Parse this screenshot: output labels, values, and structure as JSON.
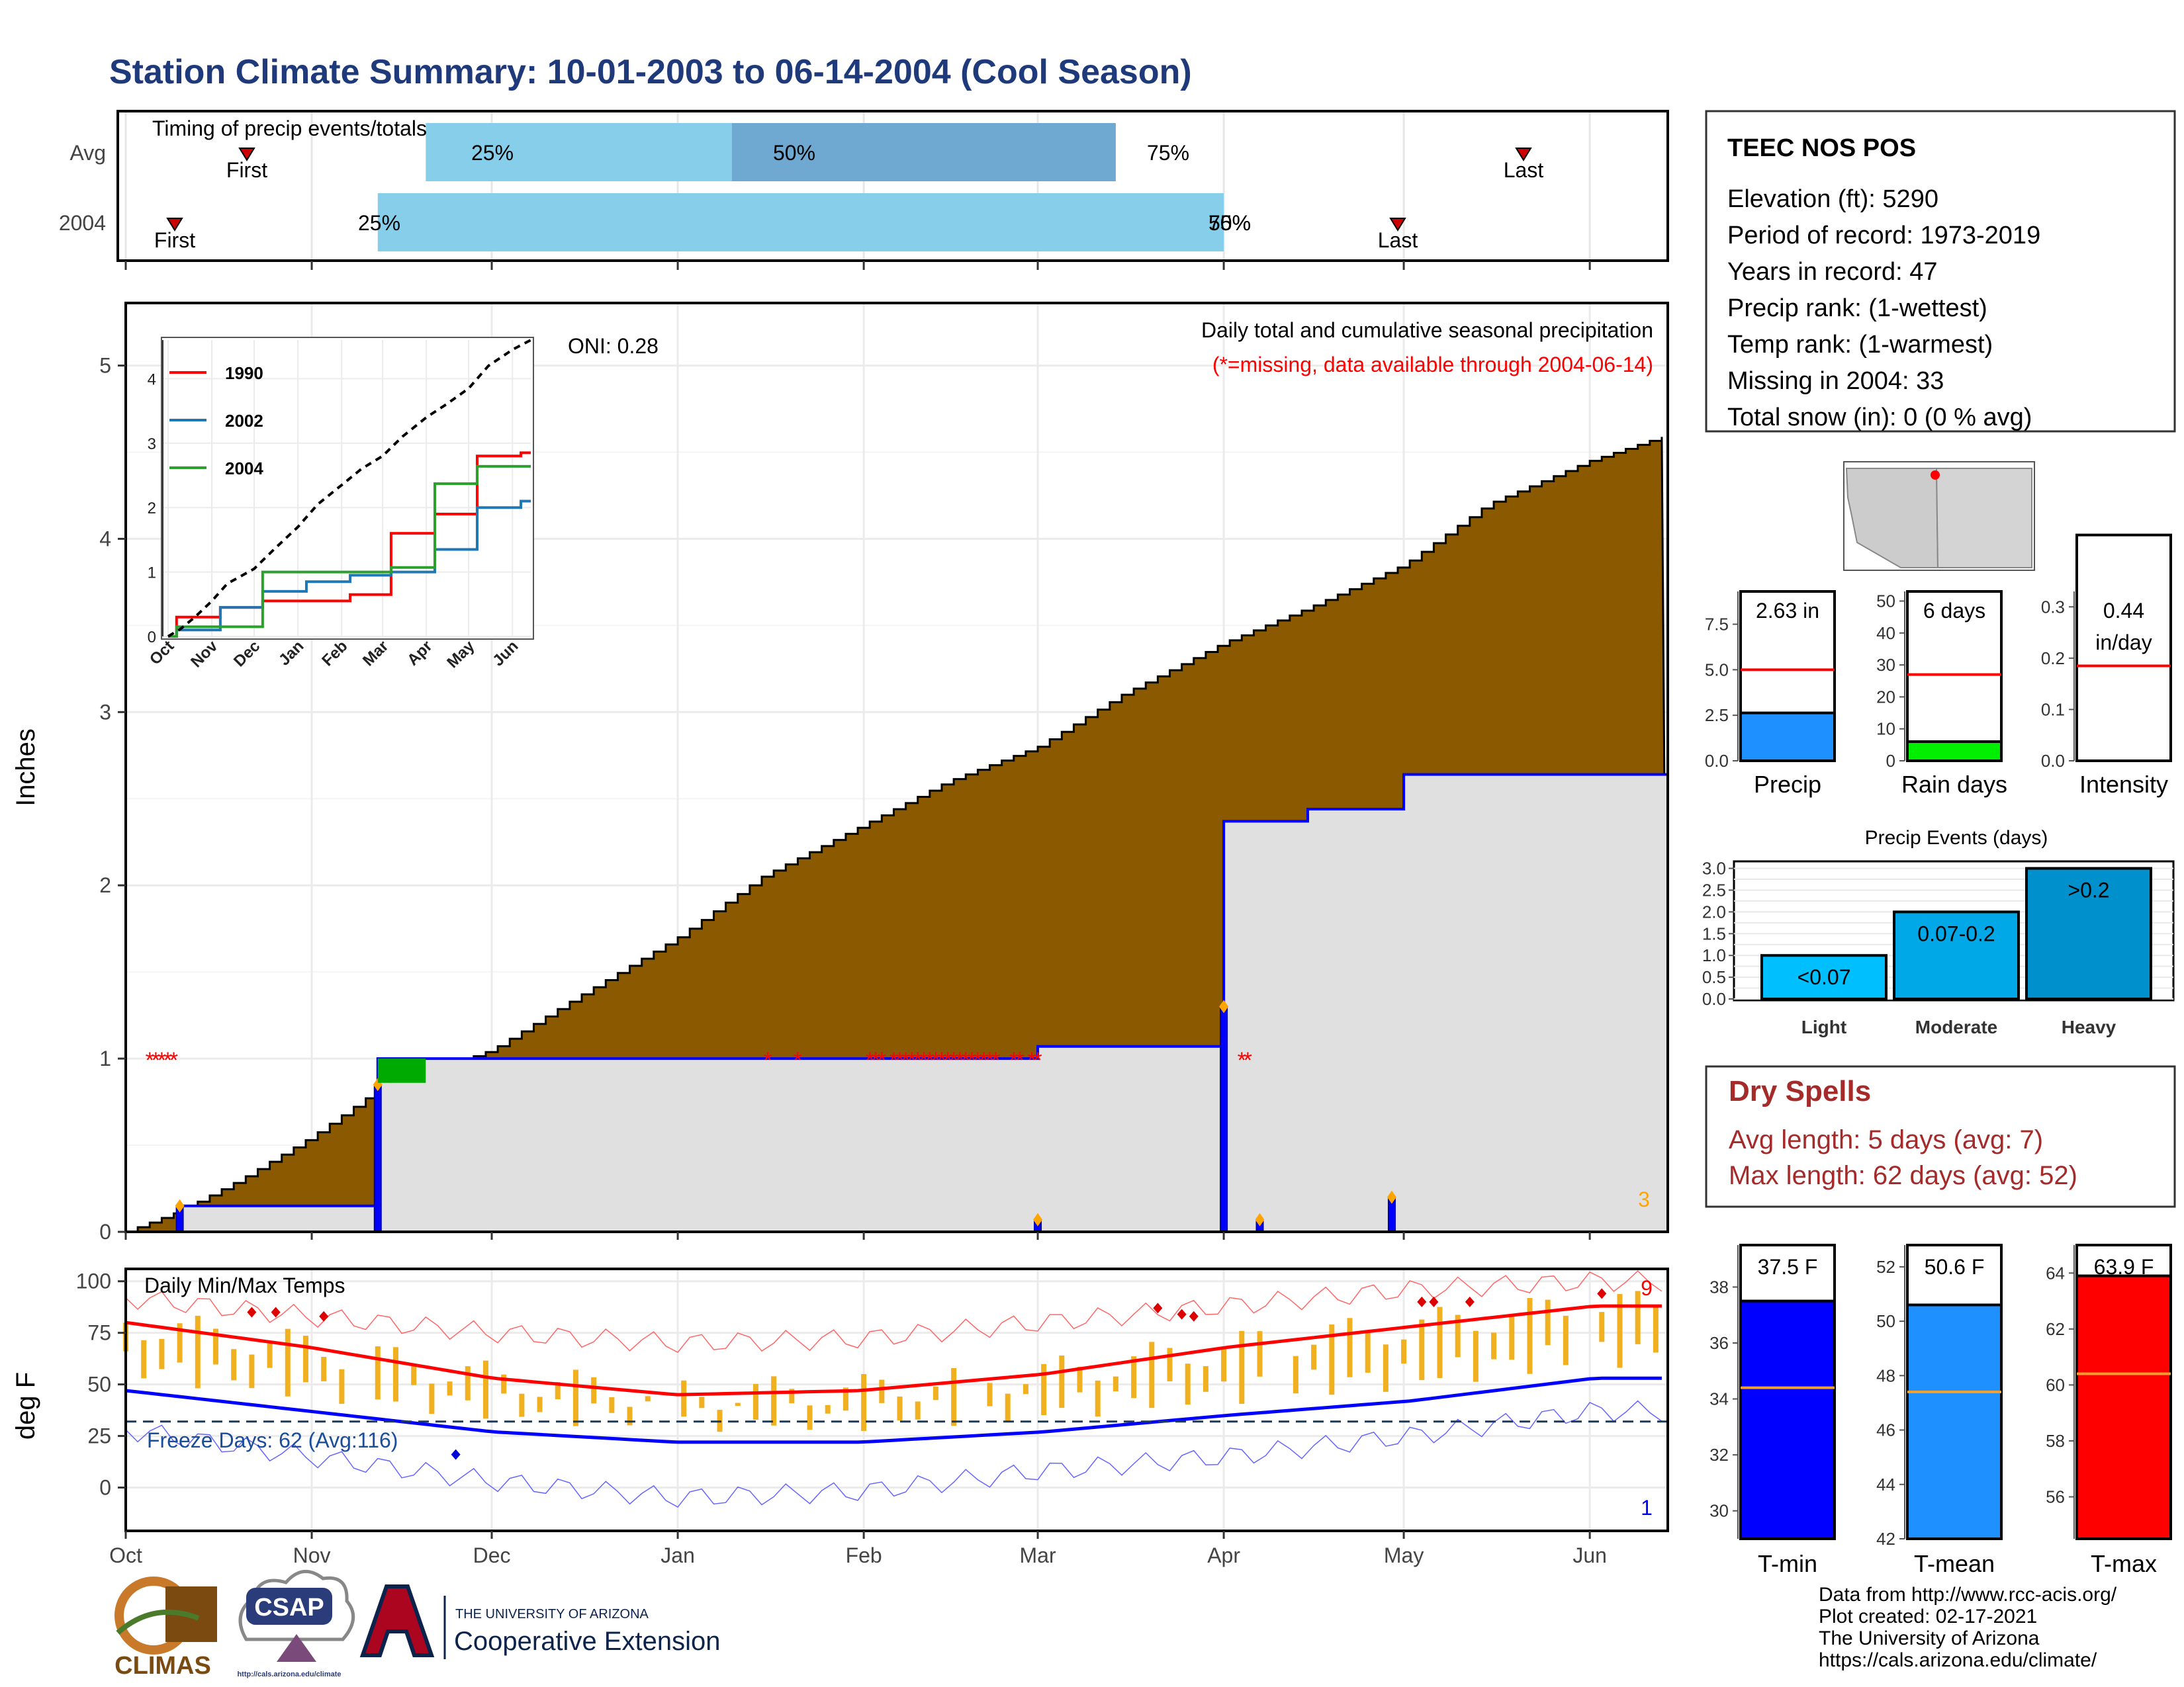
{
  "title": "Station Climate Summary: 10-01-2003 to 06-14-2004 (Cool Season)",
  "colors": {
    "title": "#1f3a7a",
    "cumulative_fill": "#8b5a00",
    "precip_fill": "#e0e0e0",
    "precip_line": "#0000ff",
    "missing": "#ff0000",
    "timing_light": "#87ceeb",
    "timing_dark": "#6fa8d0",
    "green": "#00aa00",
    "temp_bar": "#f0b020",
    "tmax": "#ff0000",
    "tmin": "#0000ff",
    "dry_spells": "#a52a2a"
  },
  "timing": {
    "title": "Timing of precip events/totals",
    "rows": [
      {
        "label": "Avg",
        "first_label": "First",
        "last_label": "Last",
        "p25_label": "25%",
        "p50_label": "50%",
        "p75_label": "75%",
        "first": "Oct 22",
        "p25": "Nov 20",
        "p50": "Jan 10",
        "p75": "Mar 14",
        "last": "May 21"
      },
      {
        "label": "2004",
        "first_label": "First",
        "last_label": "Last",
        "p25_label": "25%",
        "p50_label": "50%",
        "p75_label": "75%",
        "first": "Oct 10",
        "p25": "Nov 12",
        "p50": "Apr 1",
        "p75": "Apr 1",
        "last": "Apr 29"
      }
    ]
  },
  "main": {
    "ylabel": "Inches",
    "oni_label": "ONI: 0.28",
    "subtitle1": "Daily total and cumulative seasonal precipitation",
    "subtitle2": "(*=missing, data available through 2004-06-14)",
    "corner_count": "3",
    "missing_marker": "*",
    "month_ticks": [
      "Oct",
      "Nov",
      "Dec",
      "Jan",
      "Feb",
      "Mar",
      "Apr",
      "May",
      "Jun"
    ],
    "yticks": [
      "0",
      "1",
      "2",
      "3",
      "4",
      "5"
    ]
  },
  "inset": {
    "legend": [
      "1990",
      "2002",
      "2004"
    ],
    "yticks": [
      "0",
      "1",
      "2",
      "3",
      "4"
    ],
    "xticks": [
      "Oct",
      "Nov",
      "Dec",
      "Jan",
      "Feb",
      "Mar",
      "Apr",
      "May",
      "Jun"
    ]
  },
  "temps": {
    "title": "Daily Min/Max Temps",
    "ylabel": "deg F",
    "freeze_label": "Freeze Days: 62 (Avg:116)",
    "yticks": [
      "0",
      "25",
      "50",
      "75",
      "100"
    ],
    "xticks": [
      "Oct",
      "Nov",
      "Dec",
      "Jan",
      "Feb",
      "Mar",
      "Apr",
      "May",
      "Jun"
    ],
    "hot_count": "9",
    "cold_count": "1"
  },
  "station": {
    "name": "TEEC NOS POS",
    "lines": [
      "Elevation (ft): 5290",
      "Period of record: 1973-2019",
      "Years in record: 47",
      "Precip rank:  (1-wettest)",
      "Temp rank:  (1-warmest)",
      "Missing in 2004: 33",
      "Total snow (in): 0 (0 % avg)"
    ]
  },
  "mini_bars": [
    {
      "label": "Precip",
      "value_label": "2.63 in",
      "value": 2.63,
      "avg": 5.0,
      "ymax": 9.3,
      "ticks": [
        "0.0",
        "2.5",
        "5.0",
        "7.5"
      ],
      "tickvals": [
        0,
        2.5,
        5.0,
        7.5
      ],
      "color": "#1e90ff"
    },
    {
      "label": "Rain days",
      "value_label": "6 days",
      "value": 6,
      "avg": 27,
      "ymax": 53,
      "ticks": [
        "0",
        "10",
        "20",
        "30",
        "40",
        "50"
      ],
      "tickvals": [
        0,
        10,
        20,
        30,
        40,
        50
      ],
      "color": "#00ee00"
    },
    {
      "label": "Intensity",
      "value_label": "0.44",
      "value_label2": "in/day",
      "value": 0.44,
      "avg": 0.185,
      "ymax": 0.33,
      "ticks": [
        "0.0",
        "0.1",
        "0.2",
        "0.3"
      ],
      "tickvals": [
        0,
        0.1,
        0.2,
        0.3
      ],
      "color": "#ffffff"
    }
  ],
  "precip_events": {
    "title": "Precip Events (days)",
    "categories": [
      "Light",
      "Moderate",
      "Heavy"
    ],
    "bar_labels": [
      "<0.07",
      "0.07-0.2",
      ">0.2"
    ],
    "values": [
      1,
      2,
      3
    ],
    "ticks": [
      "0.0",
      "0.5",
      "1.0",
      "1.5",
      "2.0",
      "2.5",
      "3.0"
    ],
    "colors": [
      "#00bfff",
      "#00a8e8",
      "#0090cc"
    ]
  },
  "dry_spells": {
    "title": "Dry Spells",
    "avg_line": "Avg length: 5 days (avg: 7)",
    "max_line": "Max length: 62 days (avg: 52)"
  },
  "temp_bars": [
    {
      "label": "T-min",
      "value_label": "37.5 F",
      "value": 37.5,
      "avg": 34.4,
      "ymin": 29,
      "ymax": 39.5,
      "ticks": [
        "30",
        "32",
        "34",
        "36",
        "38"
      ],
      "tickvals": [
        30,
        32,
        34,
        36,
        38
      ],
      "color": "#0000ff"
    },
    {
      "label": "T-mean",
      "value_label": "50.6 F",
      "value": 50.6,
      "avg": 47.4,
      "ymin": 42,
      "ymax": 52.8,
      "ticks": [
        "42",
        "44",
        "46",
        "48",
        "50",
        "52"
      ],
      "tickvals": [
        42,
        44,
        46,
        48,
        50,
        52
      ],
      "color": "#1e90ff"
    },
    {
      "label": "T-max",
      "value_label": "63.9 F",
      "value": 63.9,
      "avg": 60.4,
      "ymin": 54.5,
      "ymax": 65,
      "ticks": [
        "56",
        "58",
        "60",
        "62",
        "64"
      ],
      "tickvals": [
        56,
        58,
        60,
        62,
        64
      ],
      "color": "#ff0000"
    }
  ],
  "logos": {
    "climas": "CLIMAS",
    "csap": "CSAP",
    "csap_url": "http://cals.arizona.edu/climate",
    "ua_small": "THE UNIVERSITY OF ARIZONA",
    "ua_big": "Cooperative Extension"
  },
  "credits": [
    "Data from http://www.rcc-acis.org/",
    "Plot created: 02-17-2021",
    "The University of Arizona",
    "https://cals.arizona.edu/climate/"
  ],
  "chart_data": [
    {
      "type": "area",
      "title": "Daily total and cumulative seasonal precipitation",
      "xlabel": "",
      "ylabel": "Inches",
      "ylim": [
        0,
        5
      ],
      "x": [
        "Oct 1",
        "Oct 10",
        "Oct 20",
        "Nov 1",
        "Nov 12",
        "Dec 1",
        "Dec 15",
        "Jan 1",
        "Jan 15",
        "Feb 1",
        "Feb 15",
        "Mar 1",
        "Mar 15",
        "Apr 1",
        "Apr 15",
        "May 1",
        "May 15",
        "Jun 1",
        "Jun 14"
      ],
      "series": [
        {
          "name": "Average cumulative",
          "values": [
            0.0,
            0.12,
            0.3,
            0.55,
            0.82,
            1.05,
            1.35,
            1.7,
            2.05,
            2.35,
            2.6,
            2.8,
            3.1,
            3.4,
            3.6,
            3.85,
            4.2,
            4.45,
            4.6
          ]
        },
        {
          "name": "2004 cumulative",
          "values": [
            0.0,
            0.15,
            0.15,
            0.15,
            1.0,
            1.0,
            1.0,
            1.0,
            1.0,
            1.0,
            1.0,
            1.07,
            1.07,
            2.37,
            2.44,
            2.64,
            2.64,
            2.64,
            2.64
          ]
        }
      ],
      "daily_precip": [
        {
          "date": "Oct 10",
          "value": 0.15
        },
        {
          "date": "Nov 12",
          "value": 0.85
        },
        {
          "date": "Mar 1",
          "value": 0.07
        },
        {
          "date": "Apr 1",
          "value": 1.3
        },
        {
          "date": "Apr 7",
          "value": 0.07
        },
        {
          "date": "Apr 29",
          "value": 0.2
        }
      ]
    },
    {
      "type": "line",
      "title": "",
      "ylim": [
        0,
        4.6
      ],
      "x": [
        "Oct",
        "Nov",
        "Dec",
        "Jan",
        "Feb",
        "Mar",
        "Apr",
        "May",
        "Jun"
      ],
      "series": [
        {
          "name": "1990",
          "values": [
            0.3,
            0.45,
            0.55,
            0.55,
            0.65,
            1.6,
            1.9,
            2.8,
            2.85
          ]
        },
        {
          "name": "2002",
          "values": [
            0.1,
            0.45,
            0.7,
            0.85,
            0.95,
            1.0,
            1.35,
            2.0,
            2.1
          ]
        },
        {
          "name": "2004",
          "values": [
            0.15,
            0.15,
            1.0,
            1.0,
            1.0,
            1.07,
            2.37,
            2.64,
            2.64
          ]
        }
      ]
    },
    {
      "type": "line",
      "title": "Daily Min/Max Temps",
      "ylabel": "deg F",
      "ylim": [
        -20,
        105
      ],
      "x": [
        "Oct",
        "Nov",
        "Dec",
        "Jan",
        "Feb",
        "Mar",
        "Apr",
        "May",
        "Jun"
      ],
      "series": [
        {
          "name": "Avg max",
          "values": [
            80,
            68,
            53,
            45,
            47,
            55,
            68,
            78,
            88
          ]
        },
        {
          "name": "Avg min",
          "values": [
            47,
            37,
            27,
            22,
            22,
            27,
            35,
            42,
            53
          ]
        },
        {
          "name": "Record max",
          "values": [
            92,
            83,
            75,
            70,
            72,
            80,
            88,
            96,
            100
          ]
        },
        {
          "name": "Record min",
          "values": [
            28,
            15,
            3,
            -5,
            -2,
            8,
            15,
            25,
            37
          ]
        }
      ],
      "freeze_threshold": 32
    }
  ]
}
